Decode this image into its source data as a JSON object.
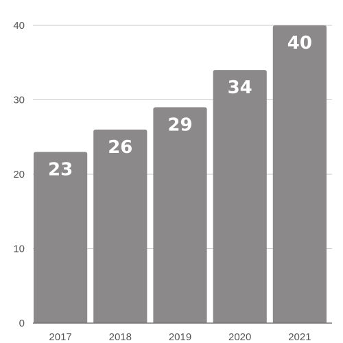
{
  "chart_data": {
    "type": "bar",
    "categories": [
      "2017",
      "2018",
      "2019",
      "2020",
      "2021"
    ],
    "values": [
      23,
      26,
      29,
      34,
      40
    ],
    "data_labels": [
      "23",
      "26",
      "29",
      "34",
      "40"
    ],
    "y_ticks": [
      "0",
      "10",
      "20",
      "30",
      "40"
    ],
    "title": "",
    "xlabel": "",
    "ylabel": "",
    "ylim": [
      0,
      40
    ],
    "grid": true,
    "legend": "none",
    "bar_color": "#8b8989",
    "grid_color": "#c8c8c8"
  }
}
